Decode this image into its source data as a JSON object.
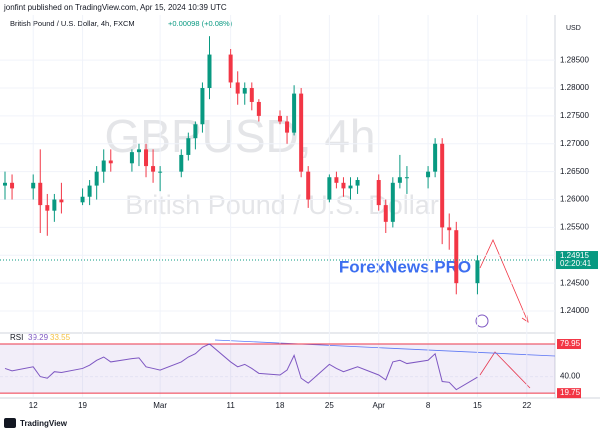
{
  "header": {
    "publisher": "jonfint published on TradingView.com, Apr 15, 2024 10:39 UTC",
    "footer": "TradingView",
    "brand": "ForexNews.PRO"
  },
  "chart_data": [
    {
      "type": "candlestick",
      "title": "British Pound / U.S. Dollar, 4h, FXCM",
      "change": "+0.00098 (+0.08%)",
      "watermark": "GBPUSD, 4h",
      "watermark_subtitle": "British Pound / U.S. Dollar",
      "currency": "USD",
      "last_price": 1.24915,
      "countdown": "02:20:41",
      "up_color": "#089981",
      "down_color": "#f23645",
      "x": [
        -4,
        -3,
        0,
        1,
        2,
        3,
        4,
        7,
        8,
        9,
        10,
        11,
        14,
        15,
        16,
        17,
        18,
        21,
        22,
        23,
        24,
        25,
        28,
        29,
        30,
        31,
        32,
        35,
        36,
        37,
        38,
        39,
        42,
        43,
        44,
        45,
        46,
        49,
        50,
        51,
        52,
        53,
        56,
        57,
        58,
        59,
        60,
        63
      ],
      "open": [
        1.2625,
        1.263,
        1.262,
        1.263,
        1.259,
        1.258,
        1.26,
        1.2595,
        1.2605,
        1.2625,
        1.265,
        1.267,
        1.2665,
        1.2685,
        1.269,
        1.266,
        1.265,
        1.265,
        1.268,
        1.271,
        1.2735,
        1.28,
        1.286,
        1.281,
        1.279,
        1.28,
        1.2775,
        1.275,
        1.274,
        1.272,
        1.279,
        1.265,
        1.26,
        1.264,
        1.263,
        1.262,
        1.2625,
        1.2635,
        1.259,
        1.256,
        1.263,
        1.264,
        1.264,
        1.265,
        1.27,
        1.255,
        1.2545,
        1.245
      ],
      "high": [
        1.265,
        1.2645,
        1.2645,
        1.269,
        1.261,
        1.261,
        1.263,
        1.262,
        1.2635,
        1.266,
        1.269,
        1.269,
        1.269,
        1.27,
        1.27,
        1.269,
        1.266,
        1.269,
        1.272,
        1.274,
        1.281,
        1.2893,
        1.287,
        1.283,
        1.281,
        1.281,
        1.278,
        1.276,
        1.275,
        1.2805,
        1.28,
        1.266,
        1.2645,
        1.265,
        1.264,
        1.264,
        1.264,
        1.2645,
        1.26,
        1.264,
        1.268,
        1.266,
        1.266,
        1.271,
        1.271,
        1.2575,
        1.256,
        1.25
      ],
      "low": [
        1.26,
        1.26,
        1.26,
        1.254,
        1.2535,
        1.256,
        1.2575,
        1.259,
        1.259,
        1.26,
        1.263,
        1.265,
        1.265,
        1.266,
        1.264,
        1.263,
        1.2615,
        1.264,
        1.267,
        1.269,
        1.272,
        1.278,
        1.28,
        1.277,
        1.277,
        1.276,
        1.274,
        1.2735,
        1.27,
        1.2715,
        1.264,
        1.2585,
        1.2595,
        1.262,
        1.2605,
        1.26,
        1.261,
        1.258,
        1.254,
        1.255,
        1.262,
        1.261,
        1.262,
        1.264,
        1.252,
        1.251,
        1.243,
        1.243
      ],
      "close": [
        1.263,
        1.262,
        1.263,
        1.259,
        1.258,
        1.26,
        1.2595,
        1.2605,
        1.2625,
        1.265,
        1.267,
        1.2665,
        1.2685,
        1.269,
        1.266,
        1.265,
        1.265,
        1.268,
        1.271,
        1.2735,
        1.28,
        1.286,
        1.281,
        1.279,
        1.28,
        1.2775,
        1.275,
        1.274,
        1.272,
        1.279,
        1.265,
        1.26,
        1.264,
        1.263,
        1.262,
        1.2625,
        1.2635,
        1.259,
        1.256,
        1.263,
        1.264,
        1.264,
        1.265,
        1.27,
        1.255,
        1.2545,
        1.245,
        1.2491
      ],
      "xlim": [
        -4,
        74
      ],
      "xticks": [
        {
          "value": 0,
          "label": "12"
        },
        {
          "value": 7,
          "label": "19"
        },
        {
          "value": 18,
          "label": "Mar"
        },
        {
          "value": 28,
          "label": "11"
        },
        {
          "value": 35,
          "label": "18"
        },
        {
          "value": 42,
          "label": "25"
        },
        {
          "value": 49,
          "label": "Apr"
        },
        {
          "value": 56,
          "label": "8"
        },
        {
          "value": 63,
          "label": "15"
        },
        {
          "value": 70,
          "label": "22"
        }
      ],
      "ylim": [
        1.2366,
        1.2922
      ],
      "yticks": [
        {
          "value": 1.24,
          "label": "1.24000"
        },
        {
          "value": 1.245,
          "label": "1.24500"
        },
        {
          "value": 1.25,
          "label": "1.25000"
        },
        {
          "value": 1.255,
          "label": "1.25500"
        },
        {
          "value": 1.26,
          "label": "1.26000"
        },
        {
          "value": 1.265,
          "label": "1.26500"
        },
        {
          "value": 1.27,
          "label": "1.27000"
        },
        {
          "value": 1.275,
          "label": "1.27500"
        },
        {
          "value": 1.28,
          "label": "1.28000"
        },
        {
          "value": 1.285,
          "label": "1.28500"
        }
      ]
    },
    {
      "type": "line",
      "name": "RSI",
      "rsi_value": 39.29,
      "ma_value": 33.55,
      "color": "#7e57c2",
      "values": [
        50,
        47,
        52,
        40,
        38,
        46,
        45,
        50,
        54,
        60,
        64,
        58,
        62,
        63,
        52,
        50,
        48,
        58,
        64,
        68,
        76,
        80,
        58,
        52,
        55,
        50,
        44,
        42,
        48,
        66,
        38,
        32,
        55,
        50,
        46,
        49,
        52,
        42,
        36,
        58,
        60,
        56,
        60,
        68,
        34,
        33,
        24,
        39.29
      ],
      "ylim": [
        15,
        91
      ],
      "yticks": [
        19.75,
        {
          "value": 40,
          "label": "40.00"
        },
        79.95
      ]
    }
  ]
}
